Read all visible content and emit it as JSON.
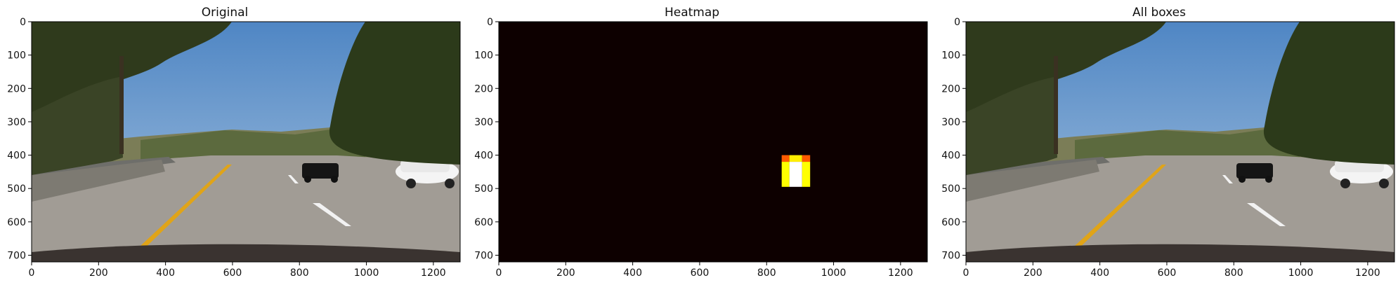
{
  "figure": {
    "panels": [
      {
        "title": "Original",
        "kind": "photo",
        "x_ticks": [
          "0",
          "200",
          "400",
          "600",
          "800",
          "1000",
          "1200"
        ],
        "y_ticks": [
          "0",
          "100",
          "200",
          "300",
          "400",
          "500",
          "600",
          "700"
        ]
      },
      {
        "title": "Heatmap",
        "kind": "heatmap",
        "x_ticks": [
          "0",
          "200",
          "400",
          "600",
          "800",
          "1000",
          "1200"
        ],
        "y_ticks": [
          "0",
          "100",
          "200",
          "300",
          "400",
          "500",
          "600",
          "700"
        ]
      },
      {
        "title": "All boxes",
        "kind": "photo",
        "x_ticks": [
          "0",
          "200",
          "400",
          "600",
          "800",
          "1000",
          "1200"
        ],
        "y_ticks": [
          "0",
          "100",
          "200",
          "300",
          "400",
          "500",
          "600",
          "700"
        ]
      }
    ]
  },
  "image_extent": {
    "width": 1280,
    "height": 720
  },
  "heatmap": {
    "background_color": "#0d0000",
    "cells": [
      {
        "x0": 845,
        "x1": 868,
        "y0": 400,
        "y1": 420,
        "color": "#ff5a00"
      },
      {
        "x0": 868,
        "x1": 906,
        "y0": 400,
        "y1": 420,
        "color": "#ffee00"
      },
      {
        "x0": 906,
        "x1": 930,
        "y0": 400,
        "y1": 420,
        "color": "#ff5a00"
      },
      {
        "x0": 845,
        "x1": 868,
        "y0": 420,
        "y1": 495,
        "color": "#ffff00"
      },
      {
        "x0": 868,
        "x1": 906,
        "y0": 420,
        "y1": 495,
        "color": "#ffffff"
      },
      {
        "x0": 906,
        "x1": 930,
        "y0": 420,
        "y1": 495,
        "color": "#ffff00"
      }
    ]
  },
  "colors": {
    "sky_top": "#4f86c4",
    "sky_bottom": "#a7c3df",
    "road": "#a19c95",
    "lane_yellow": "#e0a418"
  }
}
